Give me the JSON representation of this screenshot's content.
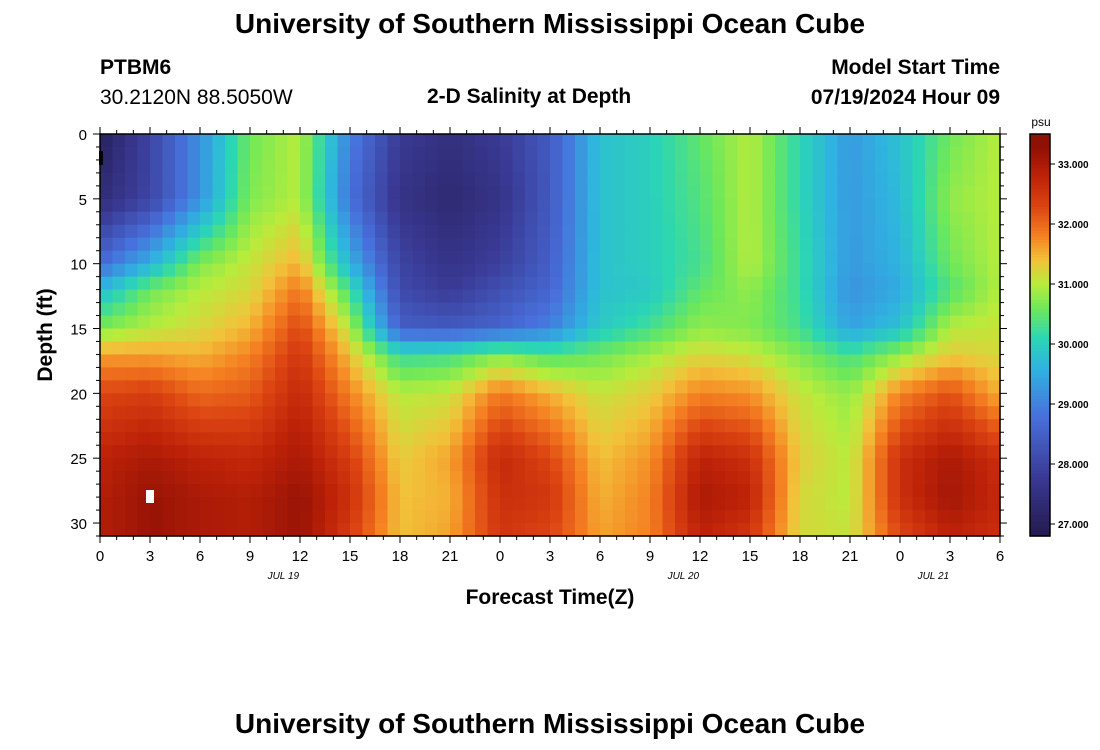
{
  "header": {
    "title": "University of Southern Mississippi Ocean Cube",
    "station_id": "PTBM6",
    "coordinates": "30.2120N  88.5050W",
    "subtitle": "2-D Salinity at Depth",
    "model_start_label": "Model Start Time",
    "model_start_value": "07/19/2024 Hour 09"
  },
  "footer": {
    "title": "University of Southern Mississippi Ocean Cube"
  },
  "chart_data": {
    "type": "heatmap",
    "title": "2-D Salinity at Depth",
    "xlabel": "Forecast Time(Z)",
    "ylabel": "Depth (ft)",
    "x_range_hours": [
      0,
      54
    ],
    "y_range_ft": [
      0,
      31
    ],
    "x_ticks": [
      "0",
      "3",
      "6",
      "9",
      "12",
      "15",
      "18",
      "21",
      "0",
      "3",
      "6",
      "9",
      "12",
      "15",
      "18",
      "21",
      "0",
      "3",
      "6"
    ],
    "y_ticks": [
      0,
      5,
      10,
      15,
      20,
      25,
      30
    ],
    "date_labels": [
      {
        "text": "JUL 19",
        "hour": 11
      },
      {
        "text": "JUL 20",
        "hour": 35
      },
      {
        "text": "JUL 21",
        "hour": 50
      }
    ],
    "colorbar": {
      "unit": "psu",
      "min": 26.8,
      "max": 33.5,
      "tick_values": [
        27.0,
        28.0,
        29.0,
        30.0,
        31.0,
        32.0,
        33.0
      ],
      "tick_labels": [
        "27.000",
        "28.000",
        "29.000",
        "30.000",
        "31.000",
        "32.000",
        "33.000"
      ],
      "colormap": [
        [
          26.8,
          "#231a4e"
        ],
        [
          27.8,
          "#3a3a95"
        ],
        [
          28.8,
          "#4870dc"
        ],
        [
          29.6,
          "#2fb3e0"
        ],
        [
          30.1,
          "#2bd6b4"
        ],
        [
          30.6,
          "#6ee85a"
        ],
        [
          31.0,
          "#b7ec3c"
        ],
        [
          31.4,
          "#f2c23a"
        ],
        [
          31.8,
          "#f58222"
        ],
        [
          32.3,
          "#dc4412"
        ],
        [
          32.8,
          "#bd2208"
        ],
        [
          33.3,
          "#8f1005"
        ]
      ]
    },
    "salinity_grid_psu": {
      "x_hours": [
        0,
        3,
        6,
        9,
        12,
        15,
        18,
        21,
        24,
        27,
        30,
        33,
        36,
        39,
        42,
        45,
        48,
        51,
        54
      ],
      "depth_ft": [
        0,
        5,
        10,
        12,
        15,
        17,
        20,
        25,
        28,
        31
      ],
      "rows": [
        [
          27.0,
          28.0,
          29.2,
          30.6,
          31.0,
          29.0,
          27.8,
          27.5,
          27.8,
          28.4,
          29.8,
          30.0,
          30.5,
          31.0,
          30.1,
          29.3,
          29.8,
          30.6,
          31.0
        ],
        [
          27.4,
          28.0,
          29.2,
          30.7,
          31.0,
          28.8,
          27.6,
          27.3,
          27.6,
          28.4,
          29.8,
          30.0,
          30.4,
          31.0,
          30.1,
          29.3,
          29.7,
          30.8,
          31.0
        ],
        [
          28.7,
          29.6,
          30.7,
          31.1,
          31.5,
          29.6,
          28.0,
          27.6,
          27.9,
          28.5,
          29.8,
          30.0,
          30.3,
          31.0,
          30.2,
          29.3,
          29.6,
          30.6,
          31.0
        ],
        [
          29.7,
          30.6,
          31.0,
          31.2,
          31.9,
          30.3,
          28.1,
          27.8,
          28.2,
          28.6,
          29.8,
          29.9,
          30.5,
          30.8,
          30.2,
          29.2,
          29.5,
          30.4,
          31.0
        ],
        [
          30.7,
          31.0,
          31.2,
          31.5,
          32.3,
          31.0,
          28.5,
          28.4,
          28.6,
          29.0,
          29.9,
          30.3,
          30.8,
          30.7,
          30.3,
          29.4,
          29.8,
          31.0,
          31.1
        ],
        [
          31.6,
          31.6,
          31.5,
          31.8,
          32.5,
          31.4,
          30.2,
          30.3,
          30.7,
          30.4,
          30.6,
          30.9,
          31.2,
          31.1,
          30.7,
          30.3,
          30.8,
          31.3,
          31.2
        ],
        [
          32.3,
          32.4,
          32.0,
          32.1,
          32.7,
          31.8,
          31.0,
          31.1,
          31.9,
          31.5,
          31.1,
          31.3,
          31.8,
          31.7,
          31.1,
          30.8,
          31.8,
          32.2,
          31.5
        ],
        [
          32.8,
          33.0,
          32.8,
          32.7,
          33.0,
          32.4,
          31.3,
          31.6,
          32.7,
          32.3,
          31.4,
          31.7,
          32.8,
          32.6,
          31.3,
          31.0,
          32.6,
          33.0,
          32.6
        ],
        [
          32.9,
          33.2,
          33.0,
          32.9,
          33.2,
          32.6,
          31.4,
          31.5,
          32.6,
          32.5,
          31.5,
          31.8,
          33.0,
          32.8,
          31.2,
          31.0,
          32.6,
          33.1,
          32.7
        ],
        [
          32.9,
          33.2,
          33.0,
          32.9,
          33.2,
          32.4,
          31.4,
          31.6,
          32.5,
          32.3,
          31.6,
          31.8,
          32.8,
          32.5,
          31.2,
          31.1,
          32.3,
          32.8,
          32.6
        ]
      ]
    }
  }
}
